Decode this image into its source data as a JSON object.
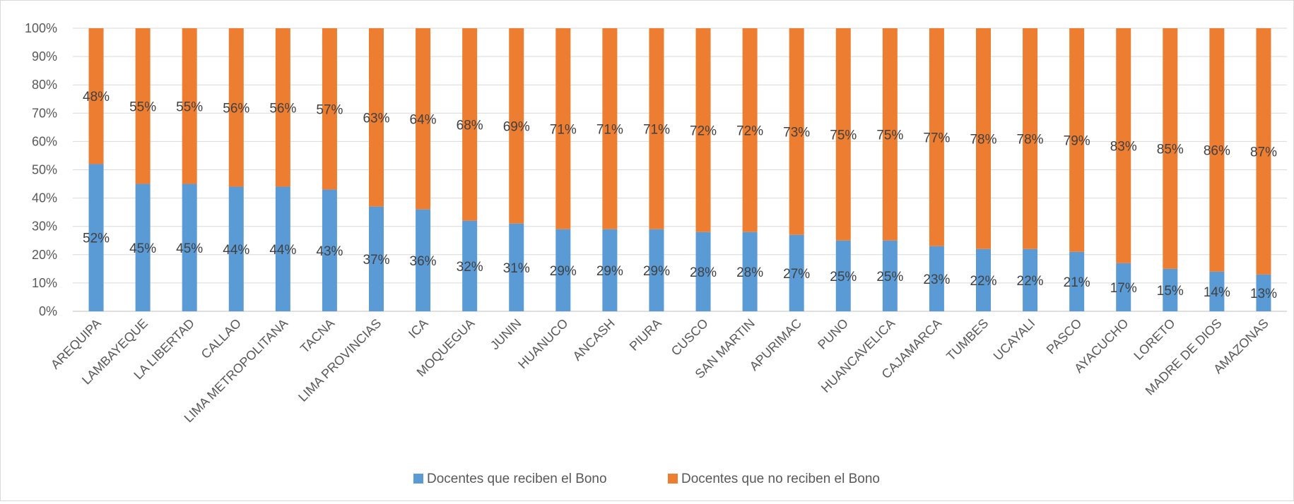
{
  "chart_data": {
    "type": "bar",
    "stacked": true,
    "percent_stacked": true,
    "title": "",
    "xlabel": "",
    "ylabel": "",
    "ylim": [
      0,
      100
    ],
    "grid": true,
    "legend_position": "bottom",
    "y_ticks": [
      "0%",
      "10%",
      "20%",
      "30%",
      "40%",
      "50%",
      "60%",
      "70%",
      "80%",
      "90%",
      "100%"
    ],
    "categories": [
      "AREQUIPA",
      "LAMBAYEQUE",
      "LA LIBERTAD",
      "CALLAO",
      "LIMA METROPOLITANA",
      "TACNA",
      "LIMA PROVINCIAS",
      "ICA",
      "MOQUEGUA",
      "JUNIN",
      "HUANUCO",
      "ANCASH",
      "PIURA",
      "CUSCO",
      "SAN MARTIN",
      "APURIMAC",
      "PUNO",
      "HUANCAVELICA",
      "CAJAMARCA",
      "TUMBES",
      "UCAYALI",
      "PASCO",
      "AYACUCHO",
      "LORETO",
      "MADRE DE DIOS",
      "AMAZONAS"
    ],
    "series": [
      {
        "name": "Docentes que reciben el Bono",
        "color": "#5b9bd5",
        "values": [
          52,
          45,
          45,
          44,
          44,
          43,
          37,
          36,
          32,
          31,
          29,
          29,
          29,
          28,
          28,
          27,
          25,
          25,
          23,
          22,
          22,
          21,
          17,
          15,
          14,
          13
        ],
        "labels": [
          "52%",
          "45%",
          "45%",
          "44%",
          "44%",
          "43%",
          "37%",
          "36%",
          "32%",
          "31%",
          "29%",
          "29%",
          "29%",
          "28%",
          "28%",
          "27%",
          "25%",
          "25%",
          "23%",
          "22%",
          "22%",
          "21%",
          "17%",
          "15%",
          "14%",
          "13%"
        ]
      },
      {
        "name": "Docentes que no reciben el Bono",
        "color": "#ed7d31",
        "values": [
          48,
          55,
          55,
          56,
          56,
          57,
          63,
          64,
          68,
          69,
          71,
          71,
          71,
          72,
          72,
          73,
          75,
          75,
          77,
          78,
          78,
          79,
          83,
          85,
          86,
          87
        ],
        "labels": [
          "48%",
          "55%",
          "55%",
          "56%",
          "56%",
          "57%",
          "63%",
          "64%",
          "68%",
          "69%",
          "71%",
          "71%",
          "71%",
          "72%",
          "72%",
          "73%",
          "75%",
          "75%",
          "77%",
          "78%",
          "78%",
          "79%",
          "83%",
          "85%",
          "86%",
          "87%"
        ]
      }
    ]
  },
  "styles": {
    "grid_color": "#d9d9d9",
    "axis_color": "#bfbfbf",
    "text_color": "#595959",
    "label_color": "#404040"
  }
}
